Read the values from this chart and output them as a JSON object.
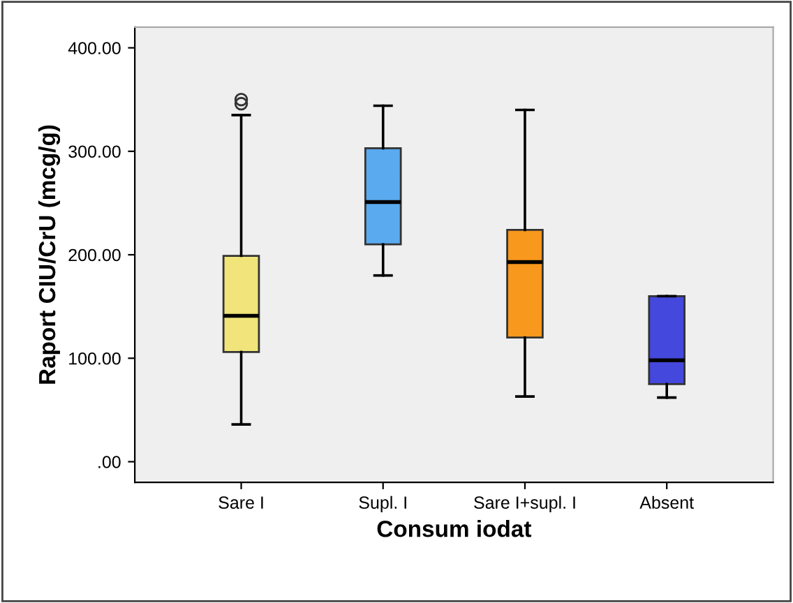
{
  "chart_data": {
    "type": "box",
    "xlabel": "Consum iodat",
    "ylabel": "Raport CIU/CrU (mcg/g)",
    "categories": [
      "Sare I",
      "Supl. I",
      "Sare I+supl. I",
      "Absent"
    ],
    "colors": [
      "#f0e47a",
      "#5aaaf0",
      "#f8981c",
      "#4448dc"
    ],
    "boxes": [
      {
        "low": 36,
        "q1": 106,
        "median": 141,
        "q3": 199,
        "high": 335,
        "outliers": [
          346,
          350
        ]
      },
      {
        "low": 180,
        "q1": 210,
        "median": 251,
        "q3": 303,
        "high": 344
      },
      {
        "low": 63,
        "q1": 120,
        "median": 193,
        "q3": 224,
        "high": 340
      },
      {
        "low": 62,
        "q1": 75,
        "median": 98,
        "q3": 160,
        "high": 160
      }
    ],
    "ylim": [
      -20,
      420
    ],
    "yticks": [
      {
        "value": 0,
        "label": ".00"
      },
      {
        "value": 100,
        "label": "100.00"
      },
      {
        "value": 200,
        "label": "200.00"
      },
      {
        "value": 300,
        "label": "300.00"
      },
      {
        "value": 400,
        "label": "400.00"
      }
    ],
    "grid": false,
    "legend": false
  }
}
